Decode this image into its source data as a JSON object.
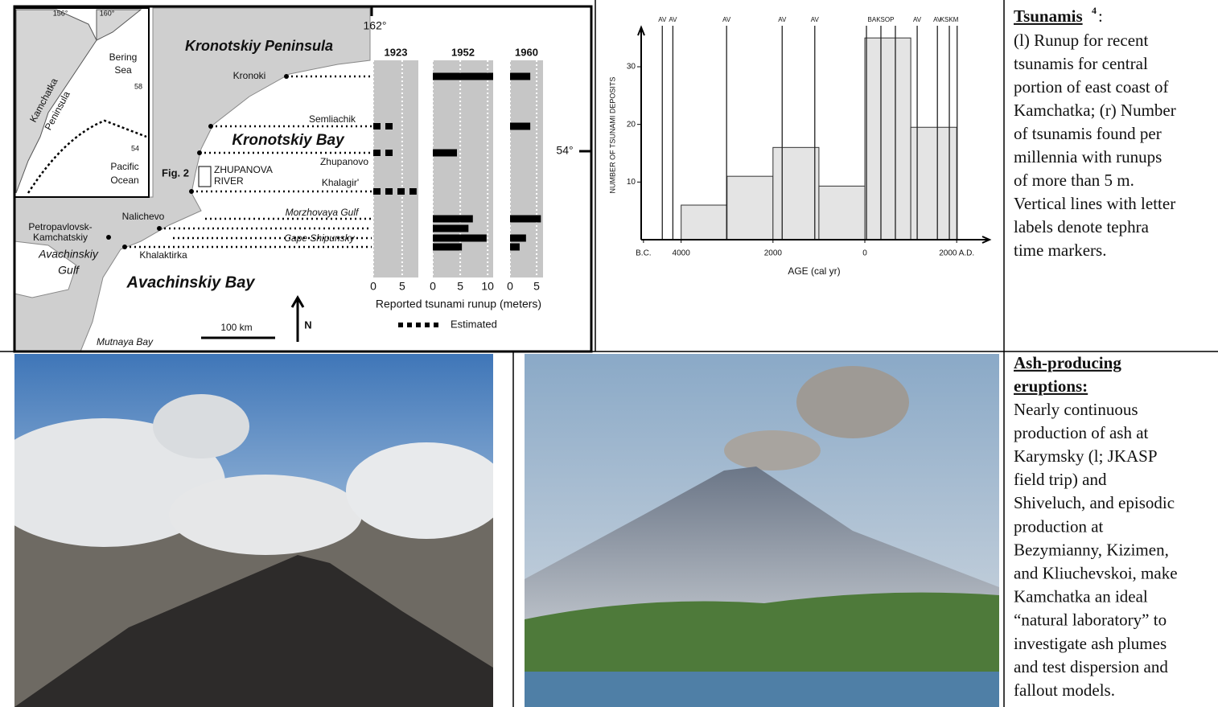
{
  "map": {
    "inset": {
      "lon_labels": [
        "156°",
        "160°"
      ],
      "sea": [
        "Bering",
        "Sea"
      ],
      "lat_labels": [
        "58",
        "54"
      ],
      "peninsula": [
        "Kamchatka",
        "Peninsula"
      ],
      "ocean": [
        "Pacific",
        "Ocean"
      ]
    },
    "peninsula": "Kronotskiy Peninsula",
    "longitude": "162°",
    "latitude": "54°",
    "places": {
      "kronoki": "Kronoki",
      "semliachik": "Semliachik",
      "zhupanovo": "Zhupanovo",
      "khalagir": "Khalagir'",
      "nalichevo": "Nalichevo",
      "petropavlovsk": [
        "Petropavlovsk-",
        "Kamchatskiy"
      ],
      "khalaktirka": "Khalaktirka",
      "morzhovaya": "Morzhovaya Gulf",
      "shipunsky": "Cape Shipunsky",
      "mutnaya": "Mutnaya Bay"
    },
    "bay": "Kronotskiy Bay",
    "fig_ref": "Fig. 2",
    "river": [
      "ZHUPANOVA",
      "RIVER"
    ],
    "gulf": [
      "Avachinskiy",
      "Gulf"
    ],
    "avachinskiy_bay": "Avachinskiy Bay",
    "scale": "100 km",
    "north": "N"
  },
  "chart_data": [
    {
      "type": "runup",
      "xlabel": "Reported tsunami runup (meters)",
      "legend": "Estimated",
      "panels": [
        {
          "title": "1923",
          "xlim": [
            0,
            7.8
          ],
          "xticks": [
            0,
            5
          ],
          "estimated": true,
          "values": [
            null,
            4,
            4,
            7.5,
            null,
            null,
            null,
            null
          ]
        },
        {
          "title": "1952",
          "xlim": [
            0,
            11
          ],
          "xticks": [
            0,
            5,
            10
          ],
          "estimated": false,
          "values": [
            11,
            null,
            4.4,
            null,
            7.3,
            6.5,
            9.8,
            5.3
          ]
        },
        {
          "title": "1960",
          "xlim": [
            0,
            6.2
          ],
          "xticks": [
            0,
            5
          ],
          "estimated": false,
          "values": [
            3.8,
            3.8,
            null,
            null,
            5.8,
            null,
            3,
            1.8
          ]
        }
      ]
    },
    {
      "type": "histogram",
      "ylabel": "NUMBER OF TSUNAMI DEPOSITS",
      "xlabel": "AGE (cal yr)",
      "bins": [
        -4000,
        -3000,
        -2000,
        -1000,
        0,
        1000,
        2000
      ],
      "values": [
        6,
        11,
        16,
        9.3,
        35,
        19.5
      ],
      "xlim": [
        -4870,
        2715
      ],
      "ylim": [
        0,
        36
      ],
      "yticks": [
        10,
        20,
        30
      ],
      "xticks": [
        {
          "value": -4820,
          "label": "B.C."
        },
        {
          "value": -4000,
          "label": "4000"
        },
        {
          "value": -2000,
          "label": "2000"
        },
        0,
        {
          "value": 2000,
          "label": "2000 A.D."
        }
      ],
      "tephra": {
        "labels": [
          "AV",
          "AV",
          "AV",
          "AV",
          "AV",
          null,
          "BAKSOP",
          null,
          "AV",
          "AV",
          "KSKM",
          null
        ],
        "values": [
          -4410,
          -4180,
          -3010,
          -1800,
          -1090,
          35,
          350,
          665,
          1140,
          1580,
          1840,
          2010
        ]
      }
    }
  ],
  "tsunami_text": {
    "title": "Tsunamis",
    "footnote": "4",
    "colon": ":",
    "lines": [
      "(l) Runup for recent",
      "tsunamis for central",
      "portion of east coast of",
      "Kamchatka; (r) Number",
      "of tsunamis found per",
      "millennia with runups",
      "of more than 5 m.",
      "Vertical lines with letter",
      "labels denote tephra",
      "time markers."
    ]
  },
  "ash_text": {
    "title": [
      "Ash-producing",
      "eruptions:"
    ],
    "lines": [
      "Nearly continuous",
      "production of ash at",
      "Karymsky (l; JKASP",
      "field trip) and",
      "Shiveluch, and episodic",
      "production at",
      "Bezymianny, Kizimen,",
      "and Kliuchevskoi, make",
      "Kamchatka an ideal",
      "“natural laboratory” to",
      "investigate ash plumes",
      "and test dispersion and",
      "fallout models."
    ]
  }
}
